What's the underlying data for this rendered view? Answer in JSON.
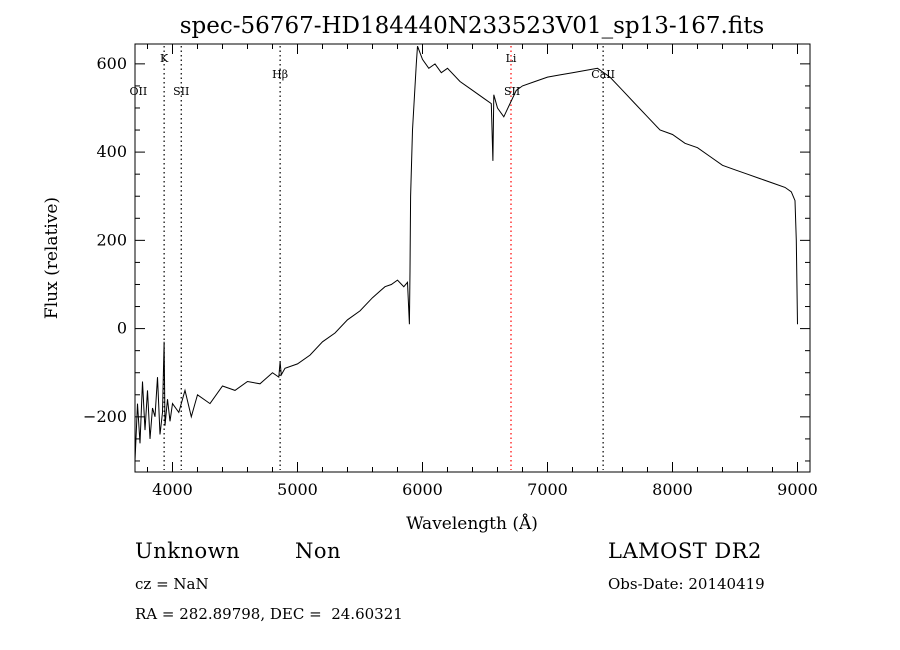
{
  "chart_data": {
    "type": "line",
    "title": "spec-56767-HD184440N233523V01_sp13-167.fits",
    "xlabel": "Wavelength (Å)",
    "ylabel": "Flux (relative)",
    "xlim": [
      3700,
      9100
    ],
    "ylim": [
      -325,
      645
    ],
    "xticks": [
      4000,
      5000,
      6000,
      7000,
      8000,
      9000
    ],
    "yticks": [
      -200,
      0,
      200,
      400,
      600
    ],
    "grid": false,
    "legend": "none",
    "line_color": "#000000",
    "series": [
      {
        "x": [
          3700,
          3720,
          3740,
          3760,
          3780,
          3800,
          3820,
          3840,
          3860,
          3880,
          3900,
          3920,
          3933,
          3940,
          3960,
          3980,
          4000,
          4050,
          4100,
          4150,
          4200,
          4300,
          4400,
          4500,
          4600,
          4700,
          4800,
          4850,
          4861,
          4870,
          4900,
          5000,
          5100,
          5200,
          5300,
          5400,
          5500,
          5600,
          5700,
          5750,
          5800,
          5850,
          5880,
          5895,
          5900,
          5905,
          5920,
          5950,
          5960,
          6000,
          6050,
          6100,
          6150,
          6200,
          6300,
          6400,
          6500,
          6550,
          6563,
          6570,
          6600,
          6650,
          6700,
          6750,
          6800,
          6900,
          7000,
          7100,
          7200,
          7300,
          7400,
          7500,
          7600,
          7700,
          7800,
          7900,
          8000,
          8100,
          8200,
          8300,
          8400,
          8500,
          8600,
          8700,
          8800,
          8900,
          8950,
          8980,
          8990,
          9000
        ],
        "y": [
          -300,
          -170,
          -260,
          -120,
          -230,
          -140,
          -250,
          -180,
          -200,
          -110,
          -240,
          -190,
          -30,
          -220,
          -160,
          -210,
          -170,
          -190,
          -140,
          -200,
          -150,
          -170,
          -130,
          -140,
          -120,
          -125,
          -100,
          -110,
          -75,
          -105,
          -90,
          -80,
          -60,
          -30,
          -10,
          20,
          40,
          70,
          95,
          100,
          110,
          95,
          105,
          10,
          130,
          300,
          450,
          600,
          640,
          610,
          590,
          600,
          580,
          590,
          560,
          540,
          520,
          510,
          380,
          530,
          500,
          480,
          510,
          540,
          550,
          560,
          570,
          575,
          580,
          585,
          590,
          570,
          540,
          510,
          480,
          450,
          440,
          420,
          410,
          390,
          370,
          360,
          350,
          340,
          330,
          320,
          310,
          290,
          200,
          10
        ]
      }
    ],
    "annotations": [
      {
        "label": "OII",
        "x": 3727,
        "color": "#000000",
        "line": false
      },
      {
        "label": "K",
        "x": 3933,
        "color": "#000000",
        "line": true
      },
      {
        "label": "SII",
        "x": 4070,
        "color": "#000000",
        "line": true
      },
      {
        "label": "Hβ",
        "x": 4861,
        "color": "#000000",
        "line": true
      },
      {
        "label": "Li",
        "x": 6708,
        "color": "#ff0000",
        "line": true
      },
      {
        "label": "SII",
        "x": 6717,
        "color": "#000000",
        "line": false
      },
      {
        "label": "CaII",
        "x": 7445,
        "color": "#000000",
        "line": true
      }
    ]
  },
  "info": {
    "class_label": "Unknown",
    "subclass_label": "Non",
    "cz_text": "cz = NaN",
    "coords_text": "RA = 282.89798, DEC =  24.60321",
    "survey_label": "LAMOST DR2",
    "obsdate_text": "Obs-Date: 20140419"
  }
}
